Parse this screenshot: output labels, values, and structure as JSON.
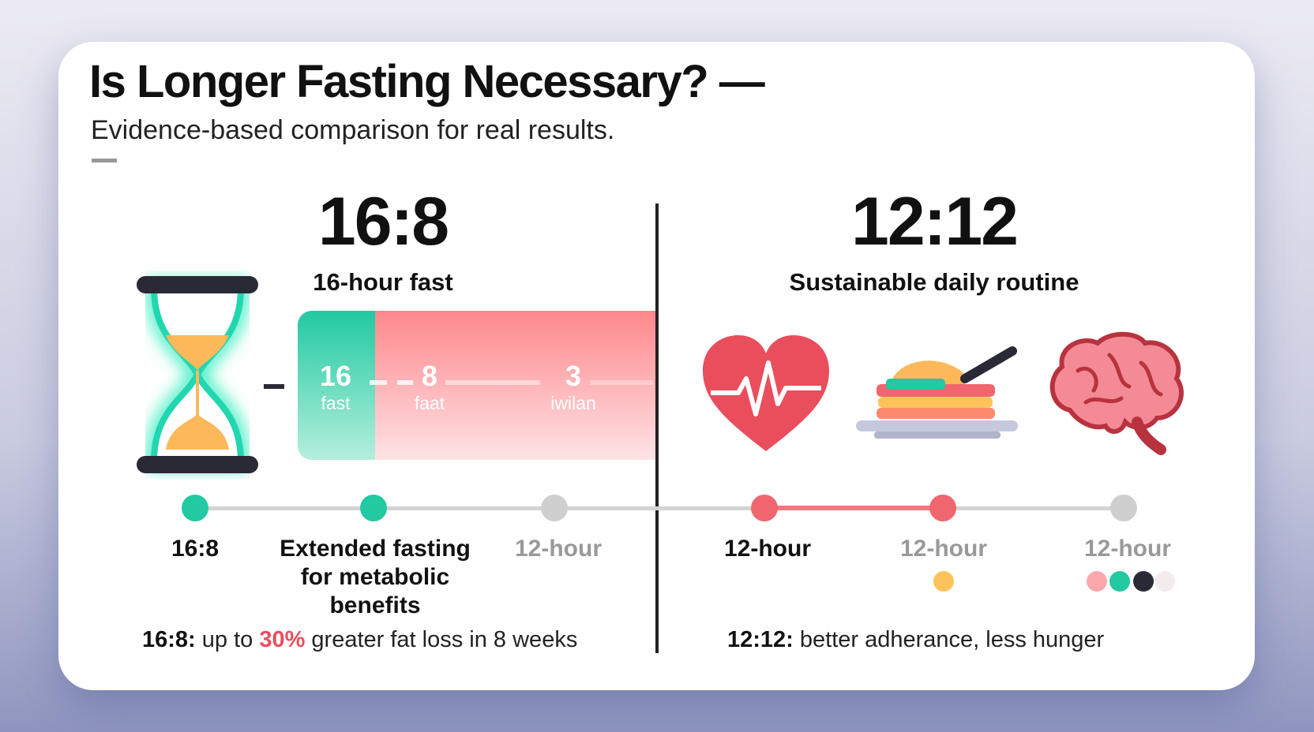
{
  "header": {
    "title": "Is Longer Fasting Necessary? —",
    "subtitle": "Evidence-based comparison for real results."
  },
  "left": {
    "ratio": "16:8",
    "caption": "16-hour fast",
    "bar": [
      {
        "n": "16",
        "l": "fast"
      },
      {
        "n": "8",
        "l": "faat"
      },
      {
        "n": "3",
        "l": "iwilan"
      }
    ],
    "timeline": [
      "16:8",
      "Extended fasting for metabolic benefits",
      "12-hour"
    ],
    "footer": {
      "prefix": "16:8:",
      "a": " up to ",
      "pct": "30%",
      "b": " greater fat loss in 8 weeks"
    }
  },
  "right": {
    "ratio": "12:12",
    "caption": "Sustainable daily routine",
    "icons": [
      "heart-pulse-icon",
      "food-plate-icon",
      "brain-icon"
    ],
    "timeline": [
      "12-hour",
      "12-hour",
      "12-hour"
    ],
    "footer": {
      "prefix": "12:12:",
      "text": " better adherance, less hunger"
    }
  },
  "colors": {
    "teal": "#22c9a1",
    "red": "#f0666e",
    "gray": "#cfcfcf",
    "yellow": "#fdc35a",
    "dark": "#2a2a36"
  }
}
